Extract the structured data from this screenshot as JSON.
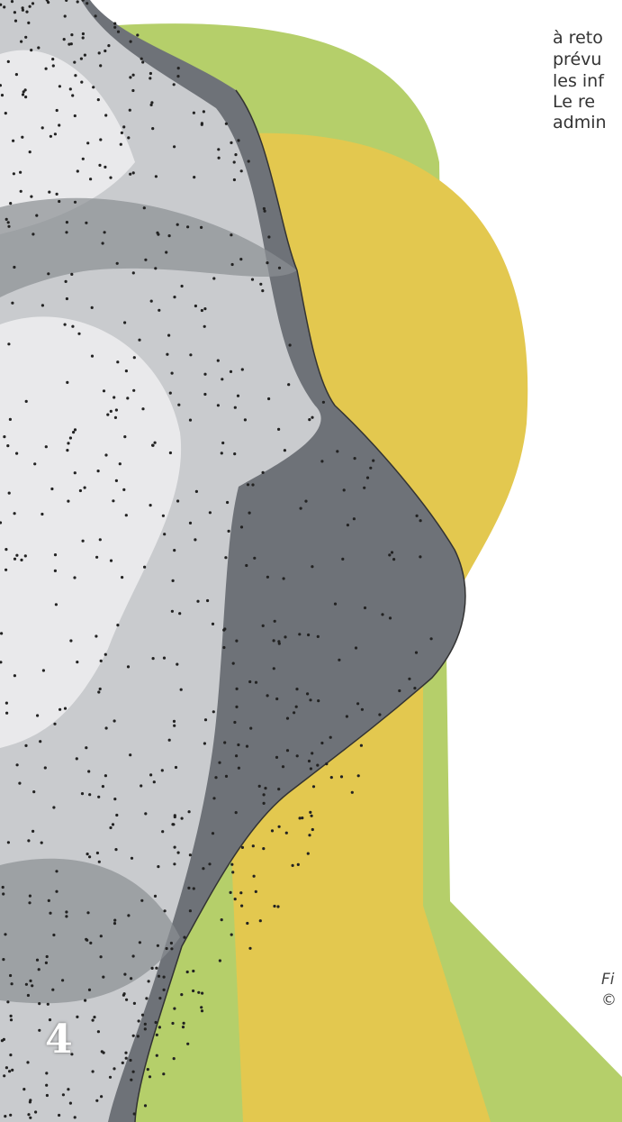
{
  "page": {
    "text_lines": [
      "à reto",
      "prévu",
      "les inf",
      "Le re",
      "admin"
    ],
    "caption": {
      "figure": "Fi",
      "credit": "©"
    },
    "page_number": "4"
  }
}
